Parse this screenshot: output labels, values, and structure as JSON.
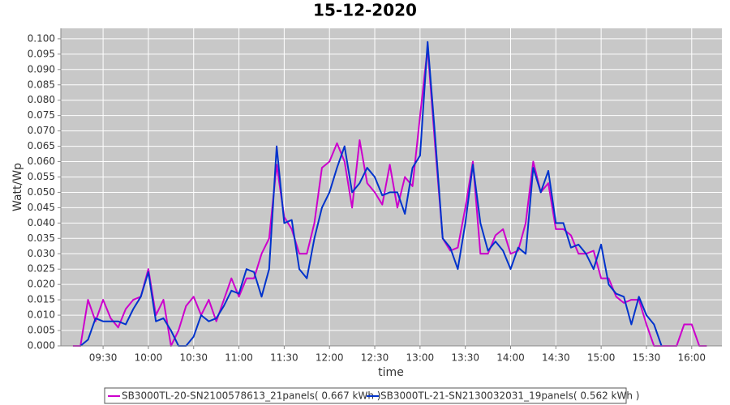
{
  "chart_data": {
    "type": "line",
    "title": "15-12-2020",
    "x_label": "time",
    "y_label": "Watt/Wp",
    "x": [
      "09:10",
      "09:15",
      "09:20",
      "09:25",
      "09:30",
      "09:35",
      "09:40",
      "09:45",
      "09:50",
      "09:55",
      "10:00",
      "10:05",
      "10:10",
      "10:15",
      "10:20",
      "10:25",
      "10:30",
      "10:35",
      "10:40",
      "10:45",
      "10:50",
      "10:55",
      "11:00",
      "11:05",
      "11:10",
      "11:15",
      "11:20",
      "11:25",
      "11:30",
      "11:35",
      "11:40",
      "11:45",
      "11:50",
      "11:55",
      "12:00",
      "12:05",
      "12:10",
      "12:15",
      "12:20",
      "12:25",
      "12:30",
      "12:35",
      "12:40",
      "12:45",
      "12:50",
      "12:55",
      "13:00",
      "13:05",
      "13:10",
      "13:15",
      "13:20",
      "13:25",
      "13:30",
      "13:35",
      "13:40",
      "13:45",
      "13:50",
      "13:55",
      "14:00",
      "14:05",
      "14:10",
      "14:15",
      "14:20",
      "14:25",
      "14:30",
      "14:35",
      "14:40",
      "14:45",
      "14:50",
      "14:55",
      "15:00",
      "15:05",
      "15:10",
      "15:15",
      "15:20",
      "15:25",
      "15:30",
      "15:35",
      "15:40",
      "15:45",
      "15:50",
      "15:55",
      "16:00",
      "16:05",
      "16:10"
    ],
    "series": [
      {
        "name": "SB3000TL-20-SN2100578613_21panels( 0.667 kWh )",
        "color": "#cc00cc",
        "values": [
          0,
          0,
          0.015,
          0.008,
          0.015,
          0.009,
          0.006,
          0.012,
          0.015,
          0.016,
          0.025,
          0.01,
          0.015,
          0,
          0.005,
          0.013,
          0.016,
          0.01,
          0.015,
          0.008,
          0.015,
          0.022,
          0.016,
          0.022,
          0.022,
          0.03,
          0.035,
          0.059,
          0.042,
          0.038,
          0.03,
          0.03,
          0.04,
          0.058,
          0.06,
          0.066,
          0.06,
          0.045,
          0.067,
          0.053,
          0.05,
          0.046,
          0.059,
          0.045,
          0.055,
          0.052,
          0.075,
          0.097,
          0.065,
          0.035,
          0.031,
          0.032,
          0.045,
          0.06,
          0.03,
          0.03,
          0.036,
          0.038,
          0.03,
          0.031,
          0.04,
          0.06,
          0.05,
          0.053,
          0.038,
          0.038,
          0.036,
          0.03,
          0.03,
          0.031,
          0.022,
          0.022,
          0.016,
          0.014,
          0.015,
          0.015,
          0.007,
          0,
          0,
          0,
          0,
          0.007,
          0.007,
          0,
          0
        ]
      },
      {
        "name": "SB3000TL-21-SN2130032031_19panels( 0.562 kWh )",
        "color": "#0033cc",
        "values": [
          null,
          0,
          0.002,
          0.009,
          0.008,
          0.008,
          0.008,
          0.007,
          0.012,
          0.016,
          0.024,
          0.008,
          0.009,
          0.005,
          0,
          0,
          0.003,
          0.01,
          0.008,
          0.009,
          0.013,
          0.018,
          0.017,
          0.025,
          0.024,
          0.016,
          0.025,
          0.065,
          0.04,
          0.041,
          0.025,
          0.022,
          0.035,
          0.045,
          0.05,
          0.058,
          0.065,
          0.05,
          0.053,
          0.058,
          0.055,
          0.049,
          0.05,
          0.05,
          0.043,
          0.058,
          0.062,
          0.099,
          0.068,
          0.035,
          0.032,
          0.025,
          0.04,
          0.059,
          0.04,
          0.031,
          0.034,
          0.031,
          0.025,
          0.032,
          0.03,
          0.058,
          0.05,
          0.057,
          0.04,
          0.04,
          0.032,
          0.033,
          0.03,
          0.025,
          0.033,
          0.02,
          0.017,
          0.016,
          0.007,
          0.016,
          0.01,
          0.007,
          0,
          null,
          null,
          null,
          null,
          null,
          null
        ]
      }
    ],
    "xlim": [
      "09:02",
      "16:20"
    ],
    "xticks": [
      "09:30",
      "10:00",
      "10:30",
      "11:00",
      "11:30",
      "12:00",
      "12:30",
      "13:00",
      "13:30",
      "14:00",
      "14:30",
      "15:00",
      "15:30",
      "16:00"
    ],
    "ylim": [
      0,
      0.1034
    ],
    "yticks": [
      {
        "value": 0,
        "label": "0.000"
      },
      {
        "value": 0.005,
        "label": "0.005"
      },
      {
        "value": 0.01,
        "label": "0.010"
      },
      {
        "value": 0.015,
        "label": "0.015"
      },
      {
        "value": 0.02,
        "label": "0.020"
      },
      {
        "value": 0.025,
        "label": "0.025"
      },
      {
        "value": 0.03,
        "label": "0.030"
      },
      {
        "value": 0.035,
        "label": "0.035"
      },
      {
        "value": 0.04,
        "label": "0.040"
      },
      {
        "value": 0.045,
        "label": "0.045"
      },
      {
        "value": 0.05,
        "label": "0.050"
      },
      {
        "value": 0.055,
        "label": "0.055"
      },
      {
        "value": 0.06,
        "label": "0.060"
      },
      {
        "value": 0.065,
        "label": "0.065"
      },
      {
        "value": 0.07,
        "label": "0.070"
      },
      {
        "value": 0.075,
        "label": "0.075"
      },
      {
        "value": 0.08,
        "label": "0.080"
      },
      {
        "value": 0.085,
        "label": "0.085"
      },
      {
        "value": 0.09,
        "label": "0.090"
      },
      {
        "value": 0.095,
        "label": "0.095"
      },
      {
        "value": 0.1,
        "label": "0.100"
      }
    ],
    "grid": true,
    "legend": "bottom"
  }
}
